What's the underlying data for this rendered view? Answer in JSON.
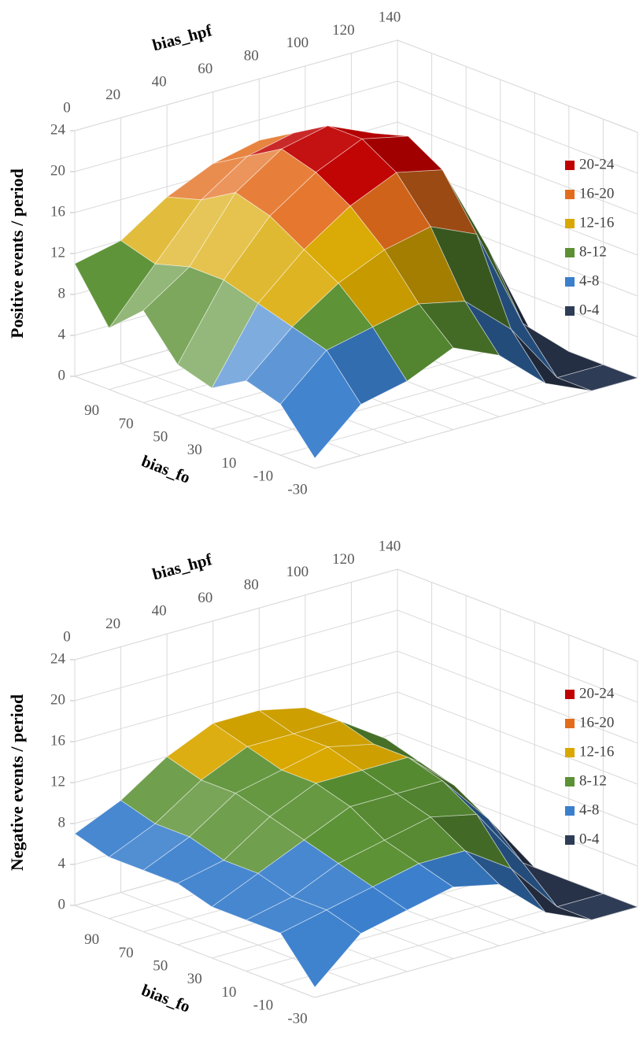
{
  "chart_data": [
    {
      "type": "surface",
      "zlabel": "Positive events / period",
      "xlabel": "bias_hpf",
      "ylabel": "bias_fo",
      "x": [
        0,
        20,
        40,
        60,
        80,
        100,
        120,
        140
      ],
      "y": [
        -30,
        -10,
        10,
        30,
        50,
        70,
        90,
        110
      ],
      "z": [
        [
          1,
          5,
          6,
          8,
          6,
          2,
          0,
          0
        ],
        [
          5,
          9,
          10,
          11,
          10,
          6,
          0,
          0
        ],
        [
          6,
          10,
          13,
          15,
          16,
          14,
          4,
          0
        ],
        [
          4,
          11,
          15,
          18,
          20,
          19,
          10,
          0
        ],
        [
          5,
          12,
          17,
          20,
          22,
          21,
          14,
          0
        ],
        [
          9,
          12,
          18,
          21,
          22,
          20,
          15,
          0
        ],
        [
          6,
          11,
          16,
          19,
          20,
          18,
          13,
          0
        ],
        [
          11,
          12,
          15,
          17,
          18,
          16,
          12,
          0
        ]
      ],
      "xlim": [
        0,
        140
      ],
      "xticks": [
        0,
        20,
        40,
        60,
        80,
        100,
        120,
        140
      ],
      "ylim": [
        -30,
        110
      ],
      "yticks": [
        -30,
        -10,
        10,
        30,
        50,
        70,
        90
      ],
      "zlim": [
        0,
        24
      ],
      "zticks": [
        0,
        4,
        8,
        12,
        16,
        20,
        24
      ],
      "series": [
        {
          "name": "20-24",
          "color": "#c00000"
        },
        {
          "name": "16-20",
          "color": "#e36c1c"
        },
        {
          "name": "12-16",
          "color": "#d9a800"
        },
        {
          "name": "8-12",
          "color": "#5b9134"
        },
        {
          "name": "4-8",
          "color": "#3a7fcc"
        },
        {
          "name": "0-4",
          "color": "#2f3c56"
        }
      ]
    },
    {
      "type": "surface",
      "zlabel": "Negative events / period",
      "xlabel": "bias_hpf",
      "ylabel": "bias_fo",
      "x": [
        0,
        20,
        40,
        60,
        80,
        100,
        120,
        140
      ],
      "y": [
        -30,
        -10,
        10,
        30,
        50,
        70,
        90,
        110
      ],
      "z": [
        [
          1,
          5,
          6,
          7,
          6,
          2,
          0,
          0
        ],
        [
          5,
          6,
          7,
          8,
          8,
          5,
          0,
          0
        ],
        [
          5,
          6,
          8,
          9,
          10,
          9,
          3,
          0
        ],
        [
          5,
          7,
          9,
          11,
          11,
          11,
          6,
          0
        ],
        [
          6,
          7,
          10,
          12,
          12,
          12,
          8,
          0
        ],
        [
          6,
          8,
          11,
          12,
          13,
          12,
          9,
          0
        ],
        [
          6,
          8,
          11,
          13,
          13,
          13,
          10,
          0
        ],
        [
          7,
          9,
          12,
          14,
          14,
          13,
          10,
          0
        ]
      ],
      "xlim": [
        0,
        140
      ],
      "xticks": [
        0,
        20,
        40,
        60,
        80,
        100,
        120,
        140
      ],
      "ylim": [
        -30,
        110
      ],
      "yticks": [
        -30,
        -10,
        10,
        30,
        50,
        70,
        90
      ],
      "zlim": [
        0,
        24
      ],
      "zticks": [
        0,
        4,
        8,
        12,
        16,
        20,
        24
      ],
      "series": [
        {
          "name": "20-24",
          "color": "#c00000"
        },
        {
          "name": "16-20",
          "color": "#e36c1c"
        },
        {
          "name": "12-16",
          "color": "#d9a800"
        },
        {
          "name": "8-12",
          "color": "#5b9134"
        },
        {
          "name": "4-8",
          "color": "#3a7fcc"
        },
        {
          "name": "0-4",
          "color": "#2f3c56"
        }
      ]
    }
  ]
}
